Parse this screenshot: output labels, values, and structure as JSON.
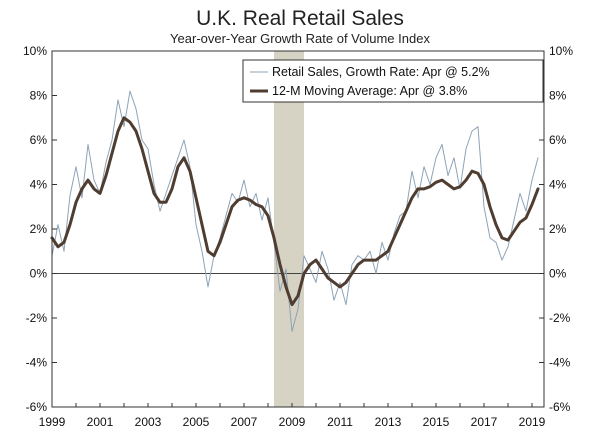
{
  "chart_data": {
    "type": "line",
    "title": "U.K. Real Retail Sales",
    "subtitle": "Year-over-Year Growth Rate of Volume Index",
    "xlabel": "",
    "ylabel": "",
    "xlim": [
      1999.0,
      2019.5
    ],
    "ylim": [
      -6,
      10
    ],
    "y_ticks": [
      10,
      8,
      6,
      4,
      2,
      0,
      -2,
      -4,
      -6
    ],
    "y_tick_labels": [
      "10%",
      "8%",
      "6%",
      "4%",
      "2%",
      "0%",
      "-2%",
      "-4%",
      "-6%"
    ],
    "x_ticks": [
      1999,
      2001,
      2003,
      2005,
      2007,
      2009,
      2011,
      2013,
      2015,
      2017,
      2019
    ],
    "x_tick_labels": [
      "1999",
      "2001",
      "2003",
      "2005",
      "2007",
      "2009",
      "2011",
      "2013",
      "2015",
      "2017",
      "2019"
    ],
    "recession_shading": {
      "start": 2008.25,
      "end": 2009.5,
      "color": "#d6d3c4"
    },
    "legend_position": "top-right",
    "grid": false,
    "series": [
      {
        "name": "Retail Sales, Growth Rate: Apr @ 5.2%",
        "color": "#8ea3b6",
        "x": [
          1999.0,
          1999.25,
          1999.5,
          1999.75,
          2000.0,
          2000.25,
          2000.5,
          2000.75,
          2001.0,
          2001.25,
          2001.5,
          2001.75,
          2002.0,
          2002.25,
          2002.5,
          2002.75,
          2003.0,
          2003.25,
          2003.5,
          2003.75,
          2004.0,
          2004.25,
          2004.5,
          2004.75,
          2005.0,
          2005.25,
          2005.5,
          2005.75,
          2006.0,
          2006.25,
          2006.5,
          2006.75,
          2007.0,
          2007.25,
          2007.5,
          2007.75,
          2008.0,
          2008.25,
          2008.5,
          2008.75,
          2009.0,
          2009.25,
          2009.5,
          2009.75,
          2010.0,
          2010.25,
          2010.5,
          2010.75,
          2011.0,
          2011.25,
          2011.5,
          2011.75,
          2012.0,
          2012.25,
          2012.5,
          2012.75,
          2013.0,
          2013.25,
          2013.5,
          2013.75,
          2014.0,
          2014.25,
          2014.5,
          2014.75,
          2015.0,
          2015.25,
          2015.5,
          2015.75,
          2016.0,
          2016.25,
          2016.5,
          2016.75,
          2017.0,
          2017.25,
          2017.5,
          2017.75,
          2018.0,
          2018.25,
          2018.5,
          2018.75,
          2019.0,
          2019.25
        ],
        "values": [
          0.8,
          2.2,
          1.0,
          3.5,
          4.8,
          3.4,
          5.8,
          4.2,
          3.6,
          5.0,
          6.0,
          7.8,
          6.6,
          8.2,
          7.4,
          6.0,
          5.6,
          4.0,
          2.8,
          3.6,
          4.4,
          5.2,
          6.0,
          4.8,
          2.2,
          1.0,
          -0.6,
          0.8,
          1.6,
          2.6,
          3.6,
          3.2,
          4.2,
          3.0,
          3.6,
          2.4,
          3.4,
          1.4,
          -0.8,
          0.2,
          -2.6,
          -1.6,
          0.8,
          0.2,
          -0.4,
          1.0,
          0.2,
          -1.2,
          -0.4,
          -1.4,
          0.4,
          0.8,
          0.6,
          1.0,
          0.0,
          1.4,
          0.6,
          1.8,
          2.6,
          2.8,
          4.6,
          3.4,
          4.8,
          4.0,
          5.2,
          5.8,
          4.4,
          5.2,
          3.8,
          5.6,
          6.4,
          6.6,
          3.0,
          1.6,
          1.4,
          0.6,
          1.2,
          2.4,
          3.6,
          2.8,
          4.2,
          5.2
        ]
      },
      {
        "name": "12-M Moving Average: Apr @ 3.8%",
        "color": "#4f3d31",
        "x": [
          1999.0,
          1999.25,
          1999.5,
          1999.75,
          2000.0,
          2000.25,
          2000.5,
          2000.75,
          2001.0,
          2001.25,
          2001.5,
          2001.75,
          2002.0,
          2002.25,
          2002.5,
          2002.75,
          2003.0,
          2003.25,
          2003.5,
          2003.75,
          2004.0,
          2004.25,
          2004.5,
          2004.75,
          2005.0,
          2005.25,
          2005.5,
          2005.75,
          2006.0,
          2006.25,
          2006.5,
          2006.75,
          2007.0,
          2007.25,
          2007.5,
          2007.75,
          2008.0,
          2008.25,
          2008.5,
          2008.75,
          2009.0,
          2009.25,
          2009.5,
          2009.75,
          2010.0,
          2010.25,
          2010.5,
          2010.75,
          2011.0,
          2011.25,
          2011.5,
          2011.75,
          2012.0,
          2012.25,
          2012.5,
          2012.75,
          2013.0,
          2013.25,
          2013.5,
          2013.75,
          2014.0,
          2014.25,
          2014.5,
          2014.75,
          2015.0,
          2015.25,
          2015.5,
          2015.75,
          2016.0,
          2016.25,
          2016.5,
          2016.75,
          2017.0,
          2017.25,
          2017.5,
          2017.75,
          2018.0,
          2018.25,
          2018.5,
          2018.75,
          2019.0,
          2019.25
        ],
        "values": [
          1.6,
          1.2,
          1.4,
          2.2,
          3.2,
          3.8,
          4.2,
          3.8,
          3.6,
          4.4,
          5.4,
          6.4,
          7.0,
          6.8,
          6.4,
          5.6,
          4.6,
          3.6,
          3.2,
          3.2,
          3.8,
          4.8,
          5.2,
          4.6,
          3.4,
          2.2,
          1.0,
          0.8,
          1.4,
          2.2,
          3.0,
          3.3,
          3.4,
          3.3,
          3.1,
          3.0,
          2.6,
          1.6,
          0.4,
          -0.6,
          -1.4,
          -1.0,
          0.0,
          0.4,
          0.6,
          0.2,
          -0.2,
          -0.4,
          -0.6,
          -0.4,
          0.0,
          0.4,
          0.6,
          0.6,
          0.6,
          0.8,
          1.0,
          1.6,
          2.2,
          2.8,
          3.4,
          3.8,
          3.8,
          3.9,
          4.1,
          4.2,
          4.0,
          3.8,
          3.9,
          4.2,
          4.6,
          4.5,
          4.0,
          3.0,
          2.2,
          1.6,
          1.5,
          1.9,
          2.3,
          2.5,
          3.1,
          3.8
        ]
      }
    ]
  }
}
